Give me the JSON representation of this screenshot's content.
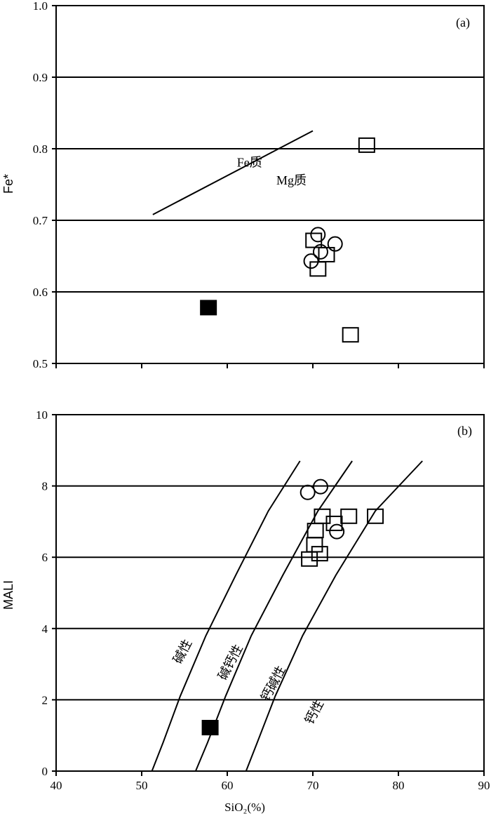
{
  "chart_data": [
    {
      "type": "scatter",
      "panel_label": "(a)",
      "xlabel": "",
      "ylabel": "Fe*",
      "xlim": [
        40,
        90
      ],
      "ylim": [
        0.5,
        1.0
      ],
      "x_ticks": [
        40,
        50,
        60,
        70,
        80,
        90
      ],
      "y_ticks": [
        "0.5",
        "0.6",
        "0.7",
        "0.8",
        "0.9",
        "1.0"
      ],
      "grid": "horizontal",
      "boundary_line": [
        [
          51.3,
          0.708
        ],
        [
          70.0,
          0.825
        ]
      ],
      "annotations": [
        {
          "text": "Fe质",
          "x": 62.6,
          "y": 0.775
        },
        {
          "text": "Mg质",
          "x": 67.5,
          "y": 0.75
        }
      ],
      "series": [
        {
          "marker": "open-circle",
          "points": [
            [
              70.6,
              0.68
            ],
            [
              72.6,
              0.667
            ],
            [
              70.9,
              0.656
            ],
            [
              69.8,
              0.643
            ]
          ]
        },
        {
          "marker": "open-square",
          "points": [
            [
              76.3,
              0.805
            ],
            [
              70.1,
              0.672
            ],
            [
              71.6,
              0.652
            ],
            [
              70.6,
              0.632
            ],
            [
              74.4,
              0.54
            ]
          ]
        },
        {
          "marker": "filled-square",
          "points": [
            [
              57.8,
              0.578
            ]
          ]
        }
      ]
    },
    {
      "type": "scatter",
      "panel_label": "(b)",
      "xlabel": "SiO₂(%)",
      "ylabel": "MALI",
      "xlim": [
        40,
        90
      ],
      "ylim": [
        0,
        10
      ],
      "x_ticks": [
        "40",
        "50",
        "60",
        "70",
        "80",
        "90"
      ],
      "y_ticks": [
        "0",
        "2",
        "4",
        "6",
        "8",
        "10"
      ],
      "grid": "horizontal",
      "boundary_curves": [
        [
          [
            51.2,
            0
          ],
          [
            52.5,
            0.8
          ],
          [
            54.5,
            2.1
          ],
          [
            57.5,
            3.8
          ],
          [
            61.0,
            5.5
          ],
          [
            64.8,
            7.3
          ],
          [
            68.5,
            8.7
          ]
        ],
        [
          [
            56.3,
            0
          ],
          [
            57.7,
            0.8
          ],
          [
            59.8,
            2.1
          ],
          [
            62.8,
            3.8
          ],
          [
            66.5,
            5.5
          ],
          [
            70.6,
            7.3
          ],
          [
            74.6,
            8.7
          ]
        ],
        [
          [
            62.2,
            0
          ],
          [
            63.5,
            0.8
          ],
          [
            65.6,
            2.1
          ],
          [
            68.8,
            3.8
          ],
          [
            72.7,
            5.5
          ],
          [
            77.3,
            7.3
          ],
          [
            82.8,
            8.7
          ]
        ]
      ],
      "annotations": [
        {
          "text": "碱性",
          "x": 55.2,
          "y": 3.3
        },
        {
          "text": "碱钙性",
          "x": 60.8,
          "y": 3.0
        },
        {
          "text": "钙碱性",
          "x": 65.8,
          "y": 2.4
        },
        {
          "text": "钙性",
          "x": 70.6,
          "y": 1.6
        }
      ],
      "series": [
        {
          "marker": "open-circle",
          "points": [
            [
              69.4,
              7.82
            ],
            [
              70.9,
              7.98
            ],
            [
              72.8,
              6.72
            ]
          ]
        },
        {
          "marker": "open-square",
          "points": [
            [
              71.1,
              7.15
            ],
            [
              74.2,
              7.15
            ],
            [
              77.3,
              7.15
            ],
            [
              72.5,
              6.95
            ],
            [
              70.3,
              6.75
            ],
            [
              70.2,
              6.35
            ],
            [
              70.8,
              6.1
            ],
            [
              69.6,
              5.95
            ]
          ]
        },
        {
          "marker": "filled-square",
          "points": [
            [
              58.0,
              1.22
            ]
          ]
        }
      ]
    }
  ]
}
